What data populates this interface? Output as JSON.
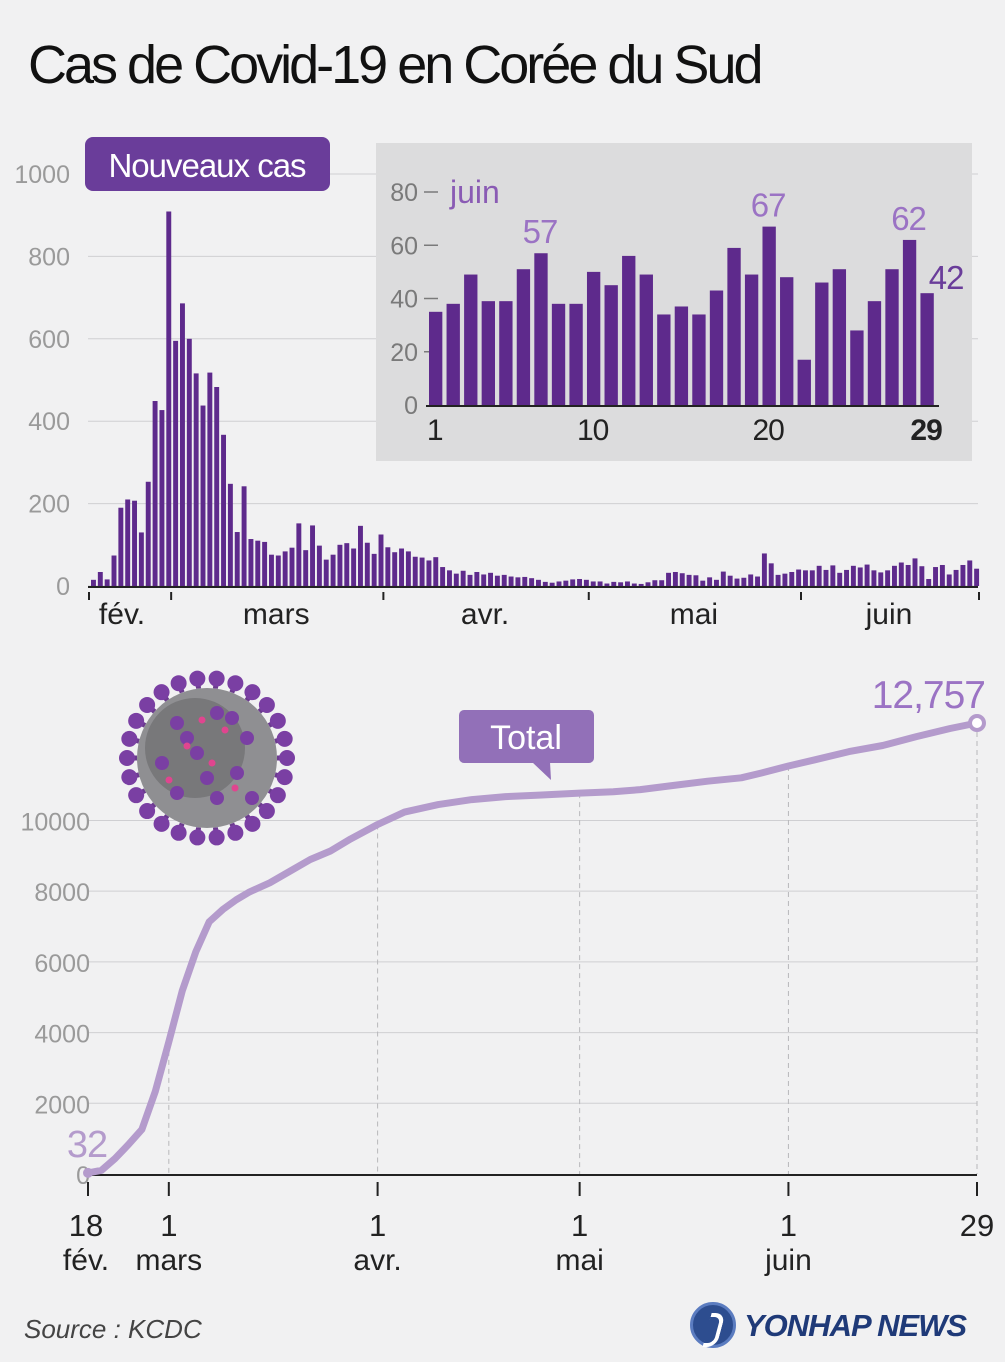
{
  "title": "Cas de Covid-19 en Corée du Sud",
  "source": "Source : KCDC",
  "logo": "YONHAP NEWS",
  "colors": {
    "bar": "#5e2a8c",
    "line": "#b49bcc",
    "accent": "#6a3d9a",
    "grid": "#cfcfd2",
    "inset_bg": "#dcdcdd"
  },
  "chart_data": [
    {
      "type": "bar",
      "label": "Nouveaux cas",
      "y_ticks": [
        0,
        200,
        400,
        600,
        800,
        1000
      ],
      "ylim": [
        0,
        1000
      ],
      "month_labels": [
        "fév.",
        "mars",
        "avr.",
        "mai",
        "juin"
      ],
      "x_start": "2020-02-18",
      "x_end": "2020-06-29",
      "values": [
        15,
        34,
        16,
        74,
        190,
        210,
        207,
        130,
        253,
        449,
        427,
        909,
        595,
        686,
        600,
        516,
        438,
        518,
        483,
        367,
        248,
        131,
        242,
        114,
        110,
        107,
        76,
        74,
        84,
        93,
        152,
        87,
        147,
        98,
        64,
        76,
        100,
        104,
        91,
        146,
        105,
        78,
        125,
        94,
        82,
        91,
        84,
        71,
        69,
        62,
        70,
        46,
        38,
        30,
        37,
        27,
        34,
        28,
        32,
        25,
        27,
        23,
        21,
        22,
        19,
        15,
        10,
        8,
        11,
        13,
        16,
        17,
        15,
        11,
        11,
        6,
        10,
        9,
        11,
        6,
        5,
        9,
        14,
        14,
        32,
        34,
        31,
        27,
        26,
        13,
        21,
        15,
        35,
        25,
        18,
        20,
        28,
        23,
        79,
        55,
        27,
        30,
        34,
        40,
        38,
        38,
        49,
        39,
        50,
        32,
        39,
        49,
        45,
        52,
        38,
        33,
        38,
        49,
        57,
        51,
        67,
        48,
        17,
        46,
        51,
        28,
        39,
        51,
        62,
        42
      ]
    },
    {
      "type": "bar",
      "label": "juin",
      "y_ticks": [
        0,
        20,
        40,
        60,
        80
      ],
      "ylim": [
        0,
        80
      ],
      "x_ticks": [
        "1",
        "10",
        "20",
        "29"
      ],
      "x": [
        1,
        2,
        3,
        4,
        5,
        6,
        7,
        8,
        9,
        10,
        11,
        12,
        13,
        14,
        15,
        16,
        17,
        18,
        19,
        20,
        21,
        22,
        23,
        24,
        25,
        26,
        27,
        28,
        29
      ],
      "values": [
        35,
        38,
        49,
        39,
        39,
        51,
        57,
        38,
        38,
        50,
        45,
        56,
        49,
        34,
        37,
        34,
        43,
        59,
        49,
        67,
        48,
        17,
        46,
        51,
        28,
        39,
        51,
        62,
        42
      ],
      "labeled_values": [
        57,
        67,
        62,
        42
      ]
    },
    {
      "type": "line",
      "label": "Total",
      "y_ticks": [
        0,
        2000,
        4000,
        6000,
        8000,
        10000
      ],
      "ylim": [
        0,
        12757
      ],
      "x_ticks": [
        {
          "day": "18",
          "month": "fév."
        },
        {
          "day": "1",
          "month": "mars"
        },
        {
          "day": "1",
          "month": "avr."
        },
        {
          "day": "1",
          "month": "mai"
        },
        {
          "day": "1",
          "month": "juin"
        },
        {
          "day": "29",
          "month": ""
        }
      ],
      "start_value": "32",
      "end_value": "12,757",
      "points": [
        [
          "2020-02-18",
          32
        ],
        [
          "2020-02-20",
          104
        ],
        [
          "2020-02-22",
          433
        ],
        [
          "2020-02-24",
          833
        ],
        [
          "2020-02-26",
          1261
        ],
        [
          "2020-02-28",
          2337
        ],
        [
          "2020-03-01",
          3736
        ],
        [
          "2020-03-03",
          5186
        ],
        [
          "2020-03-05",
          6284
        ],
        [
          "2020-03-07",
          7134
        ],
        [
          "2020-03-09",
          7478
        ],
        [
          "2020-03-11",
          7755
        ],
        [
          "2020-03-13",
          7979
        ],
        [
          "2020-03-16",
          8236
        ],
        [
          "2020-03-19",
          8565
        ],
        [
          "2020-03-22",
          8897
        ],
        [
          "2020-03-25",
          9137
        ],
        [
          "2020-03-28",
          9478
        ],
        [
          "2020-04-01",
          9887
        ],
        [
          "2020-04-05",
          10237
        ],
        [
          "2020-04-10",
          10450
        ],
        [
          "2020-04-15",
          10591
        ],
        [
          "2020-04-20",
          10674
        ],
        [
          "2020-04-25",
          10718
        ],
        [
          "2020-05-01",
          10774
        ],
        [
          "2020-05-06",
          10810
        ],
        [
          "2020-05-10",
          10874
        ],
        [
          "2020-05-15",
          10991
        ],
        [
          "2020-05-20",
          11110
        ],
        [
          "2020-05-25",
          11206
        ],
        [
          "2020-05-28",
          11344
        ],
        [
          "2020-06-01",
          11541
        ],
        [
          "2020-06-05",
          11719
        ],
        [
          "2020-06-10",
          11947
        ],
        [
          "2020-06-15",
          12121
        ],
        [
          "2020-06-20",
          12373
        ],
        [
          "2020-06-25",
          12602
        ],
        [
          "2020-06-29",
          12757
        ]
      ]
    }
  ]
}
